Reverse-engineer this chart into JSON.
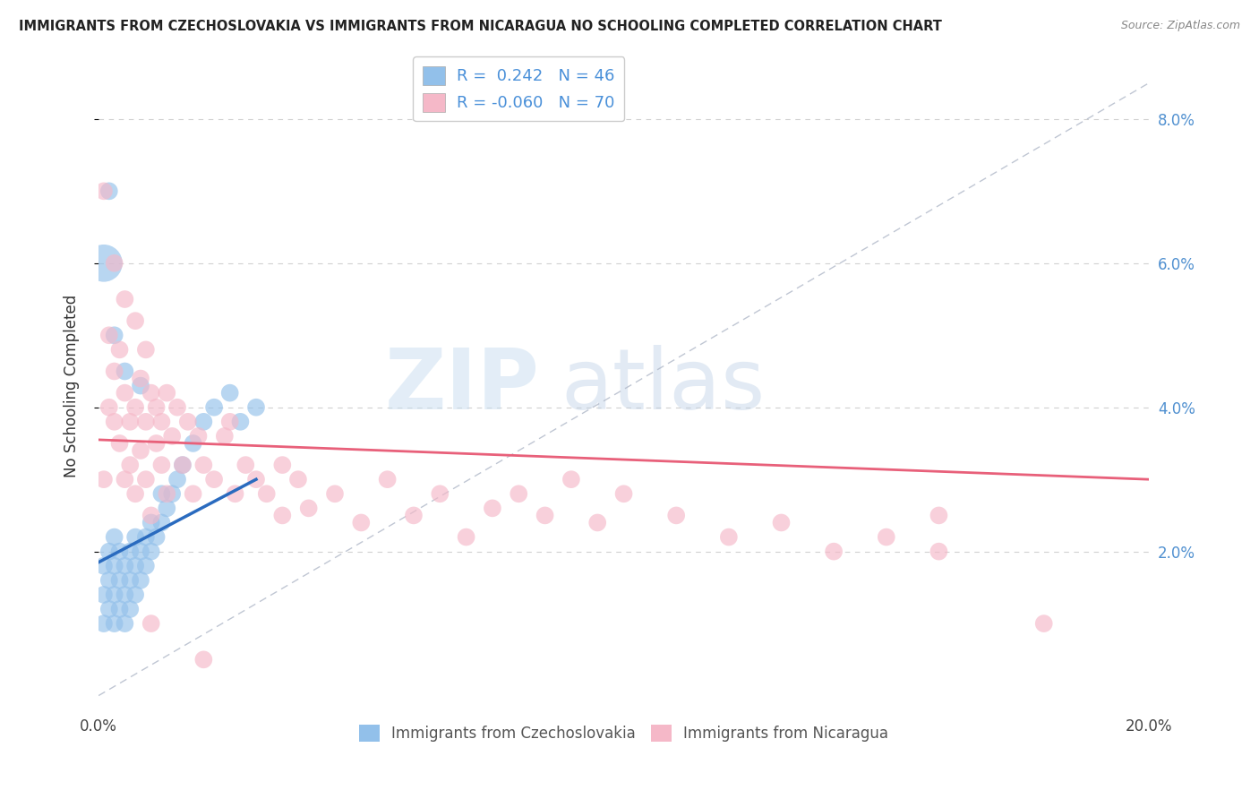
{
  "title": "IMMIGRANTS FROM CZECHOSLOVAKIA VS IMMIGRANTS FROM NICARAGUA NO SCHOOLING COMPLETED CORRELATION CHART",
  "source": "Source: ZipAtlas.com",
  "ylabel": "No Schooling Completed",
  "right_yticks": [
    "2.0%",
    "4.0%",
    "6.0%",
    "8.0%"
  ],
  "right_ytick_vals": [
    0.02,
    0.04,
    0.06,
    0.08
  ],
  "xlim": [
    0.0,
    0.2
  ],
  "ylim": [
    -0.002,
    0.088
  ],
  "R_czech": 0.242,
  "N_czech": 46,
  "R_nica": -0.06,
  "N_nica": 70,
  "color_czech": "#92c0ea",
  "color_nica": "#f5b8c8",
  "color_czech_line": "#2a6bbf",
  "color_nica_line": "#e8607a",
  "legend_label_czech": "Immigrants from Czechoslovakia",
  "legend_label_nica": "Immigrants from Nicaragua",
  "watermark_zip": "ZIP",
  "watermark_atlas": "atlas",
  "czech_x": [
    0.001,
    0.001,
    0.001,
    0.002,
    0.002,
    0.002,
    0.003,
    0.003,
    0.003,
    0.003,
    0.004,
    0.004,
    0.004,
    0.005,
    0.005,
    0.005,
    0.006,
    0.006,
    0.006,
    0.007,
    0.007,
    0.007,
    0.008,
    0.008,
    0.009,
    0.009,
    0.01,
    0.01,
    0.011,
    0.012,
    0.012,
    0.013,
    0.014,
    0.015,
    0.016,
    0.018,
    0.02,
    0.022,
    0.025,
    0.027,
    0.03,
    0.001,
    0.002,
    0.003,
    0.005,
    0.008
  ],
  "czech_y": [
    0.01,
    0.014,
    0.018,
    0.012,
    0.016,
    0.02,
    0.01,
    0.014,
    0.018,
    0.022,
    0.012,
    0.016,
    0.02,
    0.01,
    0.014,
    0.018,
    0.012,
    0.016,
    0.02,
    0.014,
    0.018,
    0.022,
    0.016,
    0.02,
    0.018,
    0.022,
    0.02,
    0.024,
    0.022,
    0.024,
    0.028,
    0.026,
    0.028,
    0.03,
    0.032,
    0.035,
    0.038,
    0.04,
    0.042,
    0.038,
    0.04,
    0.06,
    0.07,
    0.05,
    0.045,
    0.043
  ],
  "czech_sizes": [
    200,
    200,
    200,
    200,
    200,
    200,
    200,
    200,
    200,
    200,
    200,
    200,
    200,
    200,
    200,
    200,
    200,
    200,
    200,
    200,
    200,
    200,
    200,
    200,
    200,
    200,
    200,
    200,
    200,
    200,
    200,
    200,
    200,
    200,
    200,
    200,
    200,
    200,
    200,
    200,
    200,
    900,
    200,
    200,
    200,
    200
  ],
  "nica_x": [
    0.001,
    0.001,
    0.002,
    0.002,
    0.003,
    0.003,
    0.004,
    0.004,
    0.005,
    0.005,
    0.006,
    0.006,
    0.007,
    0.007,
    0.008,
    0.008,
    0.009,
    0.009,
    0.01,
    0.01,
    0.011,
    0.011,
    0.012,
    0.012,
    0.013,
    0.013,
    0.014,
    0.015,
    0.016,
    0.017,
    0.018,
    0.019,
    0.02,
    0.022,
    0.024,
    0.026,
    0.028,
    0.03,
    0.032,
    0.035,
    0.038,
    0.04,
    0.045,
    0.05,
    0.055,
    0.06,
    0.065,
    0.07,
    0.075,
    0.08,
    0.085,
    0.09,
    0.095,
    0.1,
    0.11,
    0.12,
    0.13,
    0.14,
    0.15,
    0.16,
    0.003,
    0.005,
    0.007,
    0.009,
    0.025,
    0.035,
    0.16,
    0.18,
    0.01,
    0.02
  ],
  "nica_y": [
    0.03,
    0.07,
    0.05,
    0.04,
    0.045,
    0.038,
    0.048,
    0.035,
    0.042,
    0.03,
    0.038,
    0.032,
    0.04,
    0.028,
    0.044,
    0.034,
    0.038,
    0.03,
    0.042,
    0.025,
    0.04,
    0.035,
    0.038,
    0.032,
    0.042,
    0.028,
    0.036,
    0.04,
    0.032,
    0.038,
    0.028,
    0.036,
    0.032,
    0.03,
    0.036,
    0.028,
    0.032,
    0.03,
    0.028,
    0.025,
    0.03,
    0.026,
    0.028,
    0.024,
    0.03,
    0.025,
    0.028,
    0.022,
    0.026,
    0.028,
    0.025,
    0.03,
    0.024,
    0.028,
    0.025,
    0.022,
    0.024,
    0.02,
    0.022,
    0.02,
    0.06,
    0.055,
    0.052,
    0.048,
    0.038,
    0.032,
    0.025,
    0.01,
    0.01,
    0.005
  ],
  "nica_sizes": [
    200,
    200,
    200,
    200,
    200,
    200,
    200,
    200,
    200,
    200,
    200,
    200,
    200,
    200,
    200,
    200,
    200,
    200,
    200,
    200,
    200,
    200,
    200,
    200,
    200,
    200,
    200,
    200,
    200,
    200,
    200,
    200,
    200,
    200,
    200,
    200,
    200,
    200,
    200,
    200,
    200,
    200,
    200,
    200,
    200,
    200,
    200,
    200,
    200,
    200,
    200,
    200,
    200,
    200,
    200,
    200,
    200,
    200,
    200,
    200,
    200,
    200,
    200,
    200,
    200,
    200,
    200,
    200,
    200,
    200
  ],
  "czech_line_x": [
    0.0,
    0.03
  ],
  "nica_line_x": [
    0.0,
    0.2
  ],
  "czech_line_y_start": 0.0185,
  "czech_line_y_end": 0.03,
  "nica_line_y_start": 0.0355,
  "nica_line_y_end": 0.03
}
